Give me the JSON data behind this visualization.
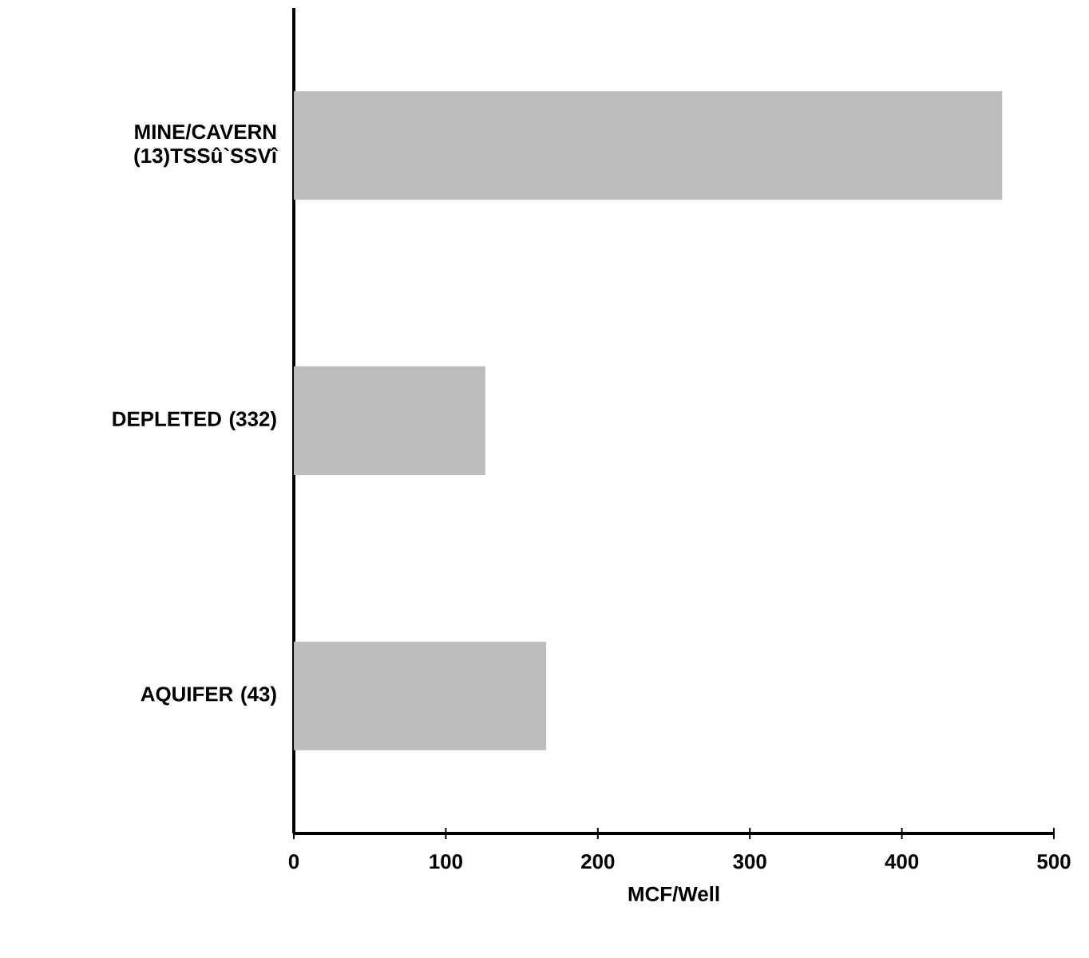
{
  "chart_data": {
    "type": "bar",
    "orientation": "horizontal",
    "xlabel": "MCF/Well",
    "categories": [
      "MINE/CAVERN (13)TSSû`SSVî",
      "DEPLETED (332)",
      "AQUIFER (43)"
    ],
    "values": [
      466,
      126,
      166
    ],
    "color": "#bdbdbd",
    "xlim": [
      0,
      500
    ],
    "xticks": [
      0,
      100,
      200,
      300,
      400,
      500
    ]
  }
}
